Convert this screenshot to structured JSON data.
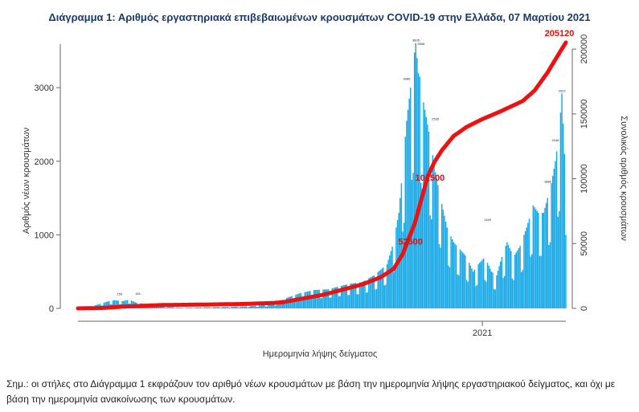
{
  "title": "Διάγραμμα 1: Αριθμός εργαστηριακά επιβεβαιωμένων κρουσμάτων COVID-19 στην Ελλάδα, 07 Μαρτίου 2021",
  "note": "Σημ.: οι στήλες στο Διάγραμμα 1 εκφράζουν τον αριθμό νέων κρουσμάτων με βάση την ημερομηνία λήψης εργαστηριακού δείγματος, και όχι με βάση την ημερομηνία ανακοίνωσης των κρουσμάτων.",
  "colors": {
    "bars": "#18a9e6",
    "line": "#ee1111",
    "label": "#dd1111"
  },
  "chart_data": {
    "type": "bar",
    "xlabel": "Ημερομηνία λήψης δείγματος",
    "ylabel": "Αριθμός νέων κρουσμάτων",
    "ylabel_right": "Συνολικός αριθμός κρουσμάτων",
    "ylim": [
      0,
      3700
    ],
    "ylim_right": [
      0,
      210000
    ],
    "yticks": [
      0,
      1000,
      2000,
      3000
    ],
    "yticks_right": [
      0,
      50000,
      100000,
      150000,
      200000
    ],
    "x_start": "2020-02-26",
    "x_end": "2021-03-06",
    "x_tick": {
      "date": "2021-01-01",
      "label": "2021"
    },
    "daily_anchors": [
      [
        "2020-02-26",
        0
      ],
      [
        "2020-03-10",
        40
      ],
      [
        "2020-03-20",
        95
      ],
      [
        "2020-03-25",
        110
      ],
      [
        "2020-04-01",
        100
      ],
      [
        "2020-04-05",
        120
      ],
      [
        "2020-04-12",
        70
      ],
      [
        "2020-04-20",
        60
      ],
      [
        "2020-05-01",
        20
      ],
      [
        "2020-05-15",
        10
      ],
      [
        "2020-06-01",
        15
      ],
      [
        "2020-06-20",
        20
      ],
      [
        "2020-07-01",
        25
      ],
      [
        "2020-07-15",
        40
      ],
      [
        "2020-07-25",
        60
      ],
      [
        "2020-08-05",
        150
      ],
      [
        "2020-08-15",
        210
      ],
      [
        "2020-08-25",
        250
      ],
      [
        "2020-09-05",
        260
      ],
      [
        "2020-09-20",
        330
      ],
      [
        "2020-10-01",
        360
      ],
      [
        "2020-10-10",
        450
      ],
      [
        "2020-10-20",
        600
      ],
      [
        "2020-10-25",
        900
      ],
      [
        "2020-10-29",
        1300
      ],
      [
        "2020-11-01",
        1900
      ],
      [
        "2020-11-04",
        2550
      ],
      [
        "2020-11-07",
        3000
      ],
      [
        "2020-11-09",
        3350
      ],
      [
        "2020-11-11",
        3605
      ],
      [
        "2020-11-13",
        3200
      ],
      [
        "2020-11-15",
        3100
      ],
      [
        "2020-11-17",
        2800
      ],
      [
        "2020-11-20",
        2500
      ],
      [
        "2020-11-23",
        2200
      ],
      [
        "2020-11-26",
        1850
      ],
      [
        "2020-11-30",
        1500
      ],
      [
        "2020-12-05",
        1100
      ],
      [
        "2020-12-10",
        900
      ],
      [
        "2020-12-15",
        800
      ],
      [
        "2020-12-20",
        700
      ],
      [
        "2020-12-25",
        500
      ],
      [
        "2020-12-29",
        600
      ],
      [
        "2021-01-03",
        700
      ],
      [
        "2021-01-08",
        500
      ],
      [
        "2021-01-12",
        450
      ],
      [
        "2021-01-16",
        700
      ],
      [
        "2021-01-20",
        900
      ],
      [
        "2021-01-25",
        700
      ],
      [
        "2021-01-30",
        850
      ],
      [
        "2021-02-04",
        1100
      ],
      [
        "2021-02-09",
        1400
      ],
      [
        "2021-02-13",
        1300
      ],
      [
        "2021-02-17",
        1300
      ],
      [
        "2021-02-20",
        1500
      ],
      [
        "2021-02-23",
        1700
      ],
      [
        "2021-02-26",
        2000
      ],
      [
        "2021-03-01",
        2400
      ],
      [
        "2021-03-03",
        2922
      ],
      [
        "2021-03-05",
        2100
      ],
      [
        "2021-03-06",
        1000
      ]
    ],
    "cumulative_anchors": [
      [
        "2020-02-26",
        0
      ],
      [
        "2020-03-15",
        300
      ],
      [
        "2020-04-01",
        1400
      ],
      [
        "2020-05-01",
        2600
      ],
      [
        "2020-06-01",
        2950
      ],
      [
        "2020-07-01",
        3400
      ],
      [
        "2020-07-25",
        4200
      ],
      [
        "2020-08-01",
        4800
      ],
      [
        "2020-09-01",
        10500
      ],
      [
        "2020-10-01",
        18500
      ],
      [
        "2020-10-15",
        24000
      ],
      [
        "2020-10-25",
        30500
      ],
      [
        "2020-11-01",
        42000
      ],
      [
        "2020-11-05",
        52500
      ],
      [
        "2020-11-10",
        65000
      ],
      [
        "2020-11-15",
        83000
      ],
      [
        "2020-11-20",
        101500
      ],
      [
        "2020-11-25",
        112500
      ],
      [
        "2020-12-01",
        122000
      ],
      [
        "2020-12-10",
        133000
      ],
      [
        "2020-12-20",
        140000
      ],
      [
        "2021-01-01",
        146000
      ],
      [
        "2021-01-15",
        152000
      ],
      [
        "2021-02-01",
        160000
      ],
      [
        "2021-02-10",
        168000
      ],
      [
        "2021-02-20",
        182000
      ],
      [
        "2021-03-01",
        197000
      ],
      [
        "2021-03-06",
        205120
      ]
    ],
    "annotations": [
      {
        "date": "2020-11-05",
        "value": 52500,
        "label": "52500"
      },
      {
        "date": "2020-11-20",
        "value": 101500,
        "label": "101500"
      },
      {
        "date": "2021-03-06",
        "value": 205120,
        "label": "205120"
      }
    ],
    "bar_labels": [
      {
        "date": "2020-03-29",
        "value": 159,
        "label": "159"
      },
      {
        "date": "2020-04-12",
        "value": 161,
        "label": "161"
      },
      {
        "date": "2020-11-11",
        "value": 3605,
        "label": "3605"
      },
      {
        "date": "2020-11-15",
        "value": 3558,
        "label": "3558"
      },
      {
        "date": "2020-11-04",
        "value": 3086,
        "label": "3086"
      },
      {
        "date": "2020-11-26",
        "value": 2535,
        "label": "2535"
      },
      {
        "date": "2021-01-05",
        "value": 1169,
        "label": "1169"
      },
      {
        "date": "2021-03-03",
        "value": 2922,
        "label": "2922"
      },
      {
        "date": "2021-02-26",
        "value": 2246,
        "label": "2246"
      },
      {
        "date": "2021-02-20",
        "value": 1686,
        "label": "1686"
      }
    ]
  }
}
